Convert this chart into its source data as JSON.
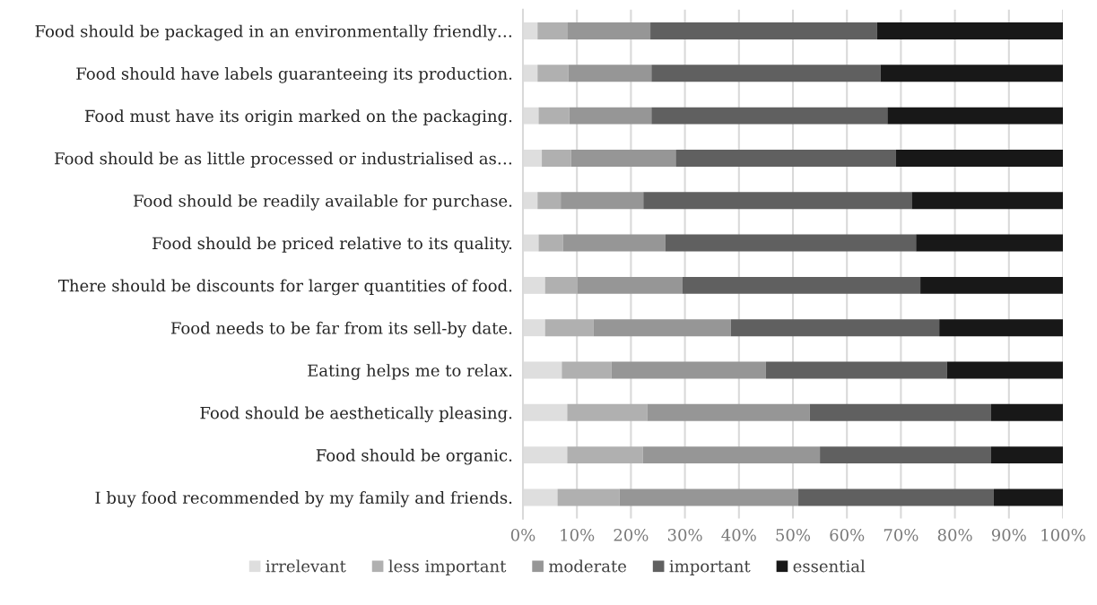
{
  "chart_data": {
    "type": "bar",
    "orientation": "horizontal",
    "stacked": true,
    "categories": [
      "Food should be packaged in an environmentally friendly…",
      "Food should have labels guaranteeing its production.",
      "Food must have its origin marked on the packaging.",
      "Food should be as little processed or industrialised as…",
      "Food should be readily available for purchase.",
      "Food should be priced relative to its quality.",
      "There should be discounts for larger quantities of food.",
      "Food needs to be far from its sell-by date.",
      "Eating helps me to relax.",
      "Food should be aesthetically pleasing.",
      "Food should be organic.",
      "I buy food recommended by my family and friends."
    ],
    "series": [
      {
        "name": "irrelevant",
        "color": "#dedede",
        "values": [
          2.7,
          2.7,
          2.9,
          3.5,
          2.7,
          2.9,
          4.1,
          4.1,
          7.2,
          8.2,
          8.2,
          6.4
        ]
      },
      {
        "name": "less important",
        "color": "#b0b0b0",
        "values": [
          5.6,
          5.7,
          5.7,
          5.4,
          4.3,
          4.5,
          6.0,
          9.0,
          9.2,
          14.8,
          14.0,
          11.5
        ]
      },
      {
        "name": "moderate",
        "color": "#969696",
        "values": [
          15.3,
          15.4,
          15.2,
          19.4,
          15.3,
          19.0,
          19.4,
          25.4,
          28.6,
          30.1,
          32.8,
          33.1
        ]
      },
      {
        "name": "important",
        "color": "#606060",
        "values": [
          42.0,
          42.4,
          43.7,
          40.8,
          49.7,
          46.4,
          44.1,
          38.6,
          33.5,
          33.6,
          31.7,
          36.2
        ]
      },
      {
        "name": "essential",
        "color": "#181818",
        "values": [
          34.4,
          33.8,
          32.5,
          30.9,
          28.0,
          27.2,
          26.4,
          22.9,
          21.5,
          13.3,
          13.3,
          12.8
        ]
      }
    ],
    "xlim": [
      0,
      100
    ],
    "xticks": [
      {
        "value": 0,
        "label": "0%"
      },
      {
        "value": 10,
        "label": "10%"
      },
      {
        "value": 20,
        "label": "20%"
      },
      {
        "value": 30,
        "label": "30%"
      },
      {
        "value": 40,
        "label": "40%"
      },
      {
        "value": 50,
        "label": "50%"
      },
      {
        "value": 60,
        "label": "60%"
      },
      {
        "value": 70,
        "label": "70%"
      },
      {
        "value": 80,
        "label": "80%"
      },
      {
        "value": 90,
        "label": "90%"
      },
      {
        "value": 100,
        "label": "100%"
      }
    ],
    "grid": "x",
    "legend": "bottom"
  }
}
